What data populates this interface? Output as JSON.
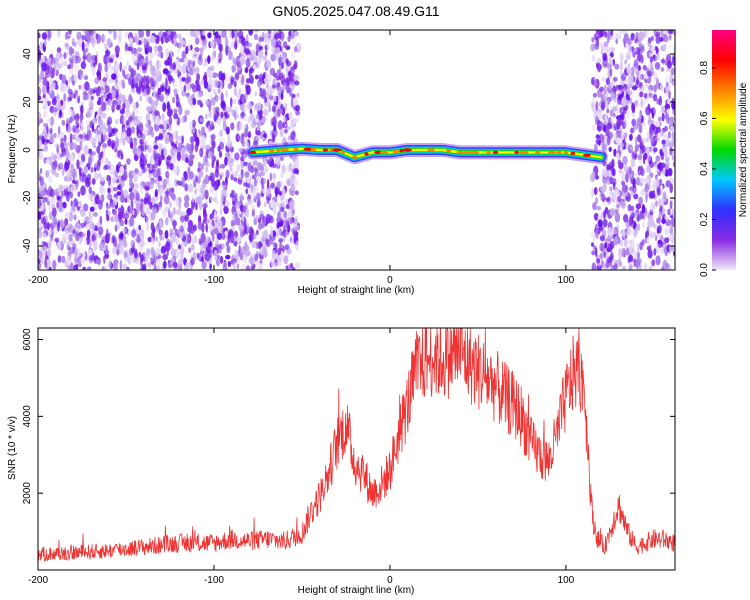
{
  "title": "GN05.2025.047.08.49.G11",
  "chart_data": [
    {
      "type": "heatmap",
      "xlabel": "Height of straight line (km)",
      "ylabel": "Frequency (Hz)",
      "xlim": [
        -200,
        162
      ],
      "ylim": [
        -50,
        50
      ],
      "x_ticks": [
        -200,
        -100,
        0,
        100
      ],
      "y_ticks": [
        -40,
        -20,
        0,
        20,
        40
      ],
      "colorbar": {
        "label": "Normalized spectral amplitude",
        "range": [
          0.0,
          0.95
        ],
        "ticks": [
          "0.0",
          "0.2",
          "0.4",
          "0.6",
          "0.8"
        ],
        "colors": [
          "#f0e6f8",
          "#8a2be2",
          "#3030ff",
          "#00c8ff",
          "#00d800",
          "#ffff00",
          "#ff8000",
          "#ff0000",
          "#ff0080"
        ]
      },
      "regions": [
        {
          "kind": "noise",
          "x": [
            -200,
            -52
          ],
          "freq": [
            -50,
            50
          ],
          "amplitude": 0.15
        },
        {
          "kind": "signal",
          "x": [
            -78,
            120
          ],
          "freq": [
            -3,
            3
          ],
          "amplitude": 0.9
        },
        {
          "kind": "noise",
          "x": [
            115,
            162
          ],
          "freq": [
            -50,
            50
          ],
          "amplitude": 0.12
        }
      ],
      "signal_track": {
        "x": [
          -78,
          -60,
          -50,
          -40,
          -30,
          -20,
          -10,
          0,
          10,
          20,
          30,
          40,
          60,
          80,
          100,
          120
        ],
        "freq": [
          -1,
          0,
          0.5,
          0,
          0,
          -3,
          -1,
          -1,
          0,
          0,
          0,
          -1,
          -1,
          -1,
          -1,
          -3
        ]
      }
    },
    {
      "type": "line",
      "xlabel": "Height of straight line (km)",
      "ylabel": "SNR (10 * v/v)",
      "xlim": [
        -200,
        162
      ],
      "ylim": [
        0,
        6300
      ],
      "x_ticks": [
        -200,
        -100,
        0,
        100
      ],
      "y_ticks": [
        2000,
        4000,
        6000
      ],
      "color": "#ee3333",
      "series": [
        {
          "x": [
            -200,
            -180,
            -160,
            -140,
            -120,
            -100,
            -90,
            -80,
            -70,
            -60,
            -55,
            -50,
            -45,
            -40,
            -35,
            -30,
            -25,
            -20,
            -15,
            -10,
            -5,
            0,
            5,
            10,
            15,
            20,
            25,
            30,
            35,
            40,
            45,
            50,
            55,
            60,
            65,
            70,
            75,
            80,
            85,
            90,
            95,
            100,
            105,
            110,
            115,
            118,
            122,
            125,
            130,
            135,
            140,
            145,
            150,
            155,
            162
          ],
          "y": [
            400,
            450,
            500,
            600,
            700,
            700,
            800,
            750,
            800,
            750,
            850,
            950,
            1500,
            1900,
            2500,
            3300,
            3800,
            2800,
            2500,
            2000,
            2200,
            2600,
            3500,
            4300,
            5200,
            5500,
            5600,
            5500,
            5600,
            5700,
            5400,
            5200,
            5000,
            4800,
            4500,
            4300,
            4000,
            3300,
            3000,
            2800,
            3500,
            4500,
            5200,
            5000,
            1400,
            800,
            600,
            1000,
            1700,
            1000,
            600,
            700,
            800,
            800,
            700
          ]
        }
      ]
    }
  ]
}
